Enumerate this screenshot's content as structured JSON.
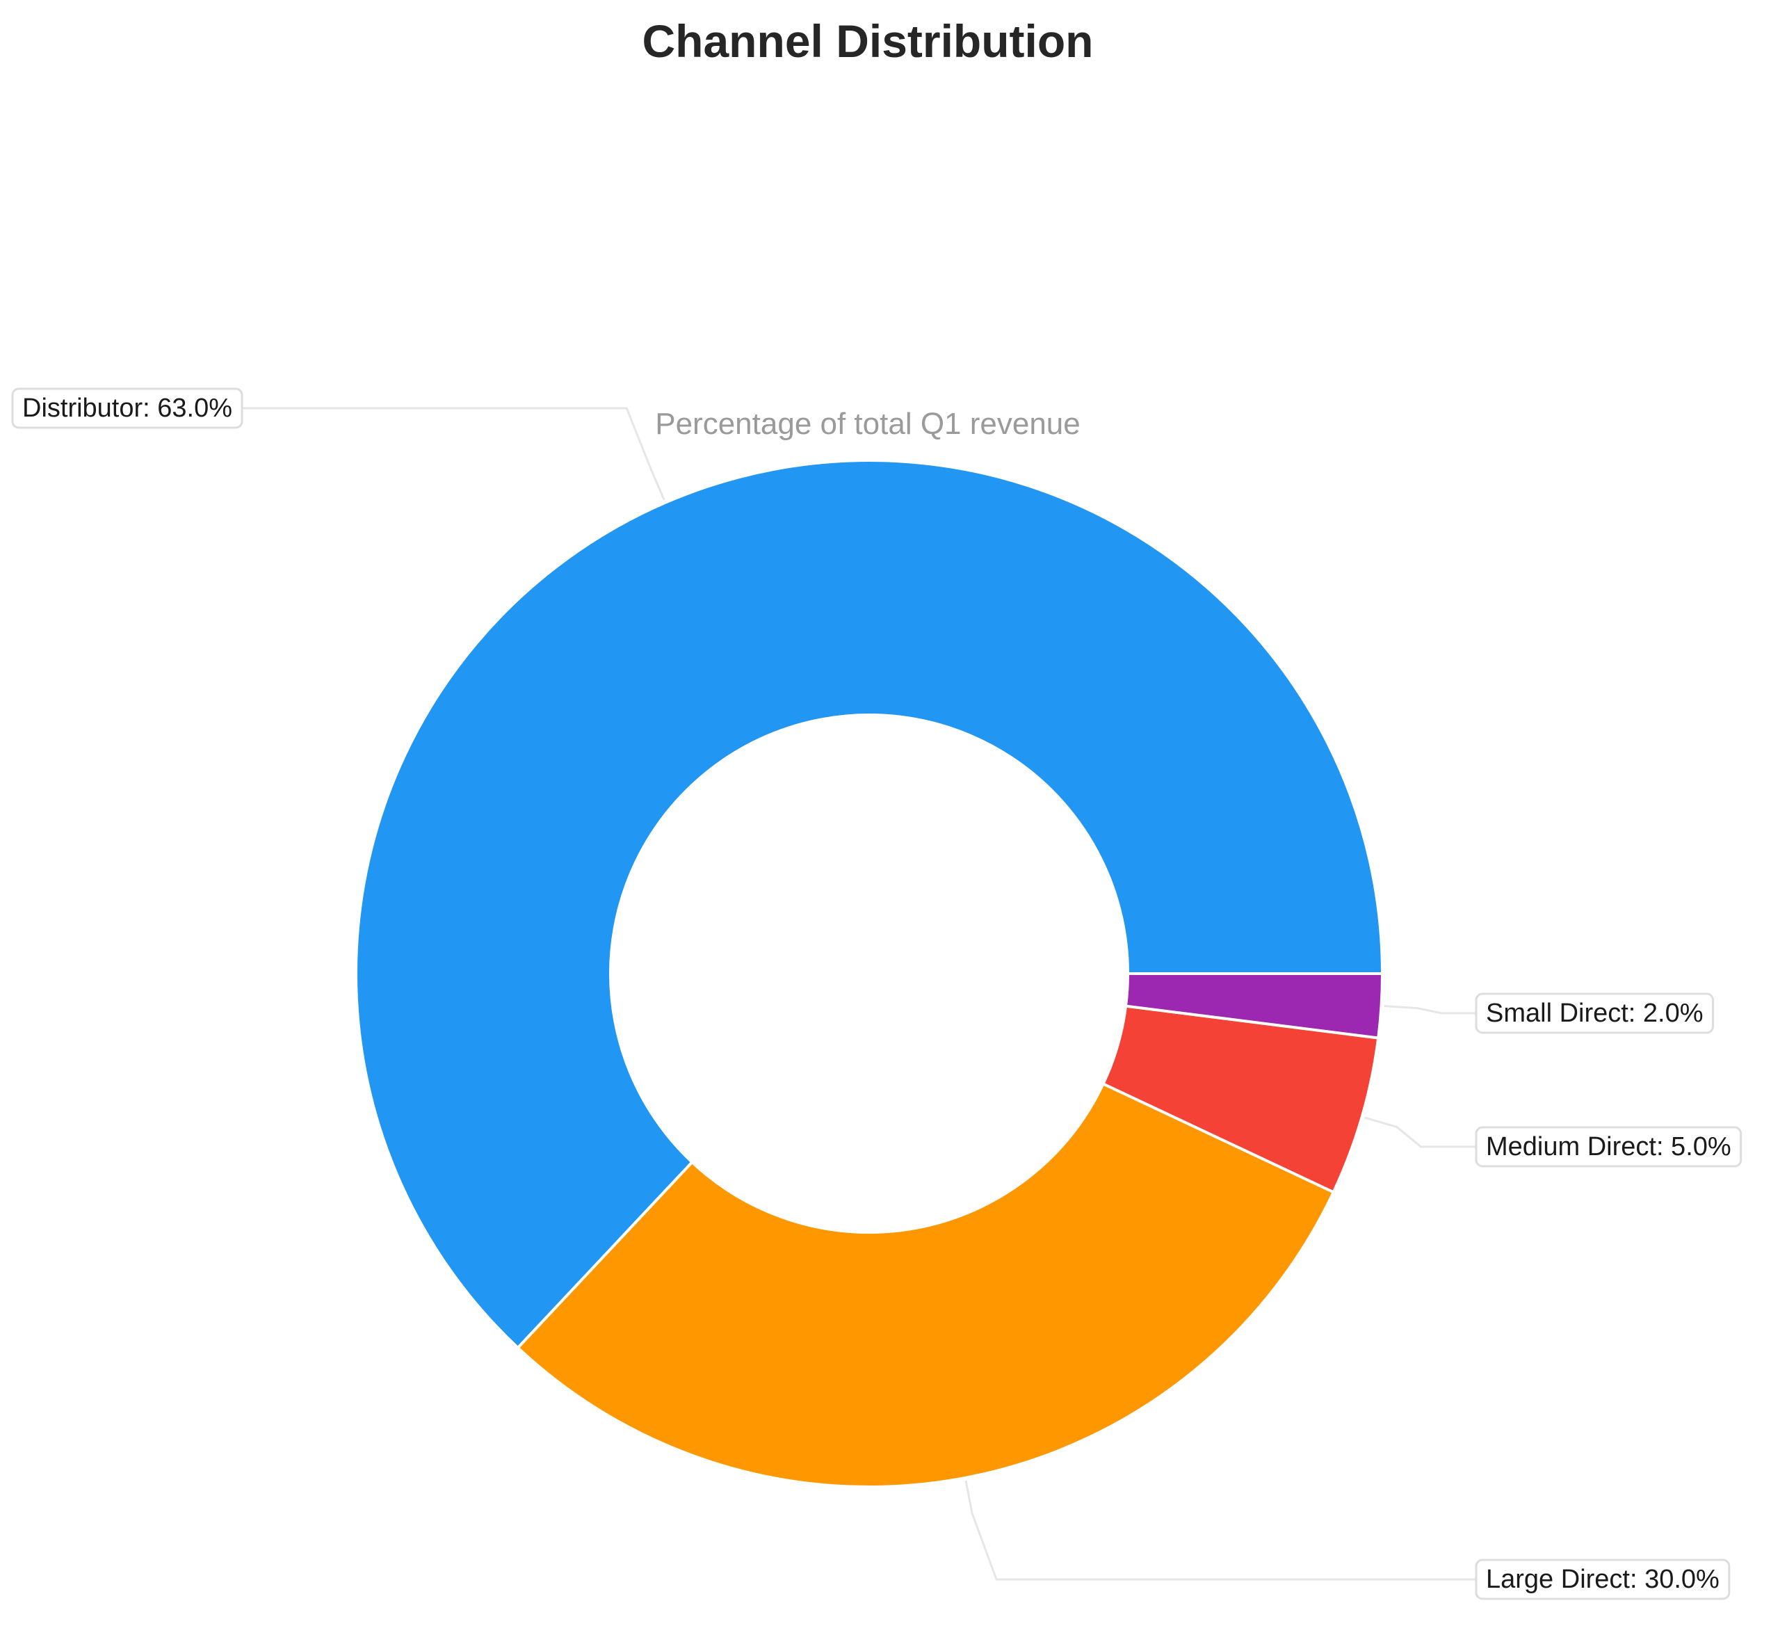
{
  "chart_data": {
    "type": "pie",
    "style": "donut",
    "title": "Channel Distribution",
    "subtitle": "Percentage of total Q1 revenue",
    "categories": [
      "Distributor",
      "Large Direct",
      "Medium Direct",
      "Small Direct"
    ],
    "values": [
      63.0,
      30.0,
      5.0,
      2.0
    ],
    "labels": [
      "Distributor: 63.0%",
      "Large Direct: 30.0%",
      "Medium Direct: 5.0%",
      "Small Direct: 2.0%"
    ],
    "colors": [
      "#2196F3",
      "#FF9800",
      "#F44336",
      "#9C27B0"
    ],
    "direction": "counterclockwise",
    "start_angle": 0,
    "legend": "none",
    "grid": false
  }
}
